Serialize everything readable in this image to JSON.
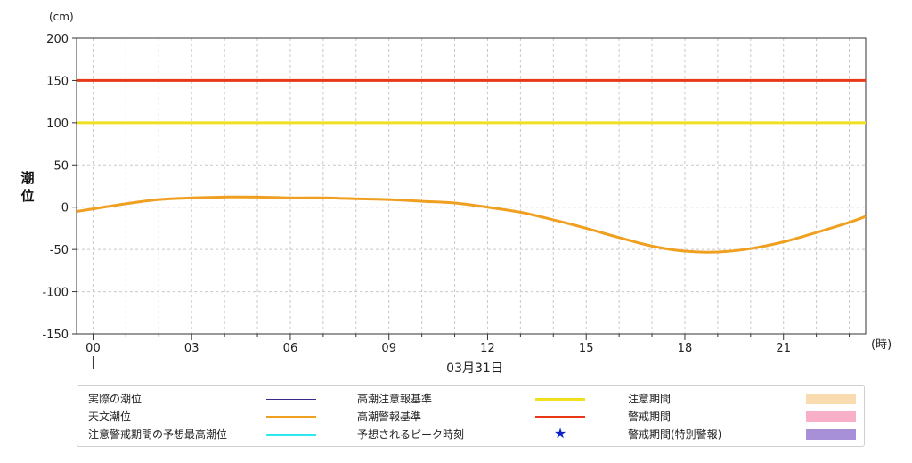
{
  "chart_data": {
    "type": "line",
    "ylabel": "潮位",
    "yunit": "(cm)",
    "xunit": "(時)",
    "date_label": "03月31日",
    "ylim": [
      -150,
      200
    ],
    "yticks": [
      200,
      150,
      100,
      50,
      0,
      -50,
      -100,
      -150
    ],
    "xlim": [
      -0.5,
      23.5
    ],
    "xticks": [
      0,
      3,
      6,
      9,
      12,
      15,
      18,
      21
    ],
    "xtick_labels": [
      "00",
      "03",
      "06",
      "09",
      "12",
      "15",
      "18",
      "21"
    ],
    "grid": true,
    "legend_position": "bottom",
    "series": [
      {
        "name": "天文潮位",
        "color": "#f0a020",
        "x": [
          -0.5,
          0,
          1,
          2,
          3,
          4,
          5,
          6,
          7,
          8,
          9,
          10,
          11,
          12,
          13,
          14,
          15,
          16,
          17,
          18,
          19,
          20,
          21,
          22,
          23,
          23.5
        ],
        "y": [
          -5,
          -2,
          4,
          9,
          11,
          12,
          12,
          11,
          11,
          10,
          9,
          7,
          5,
          0,
          -6,
          -15,
          -25,
          -36,
          -46,
          -52,
          -53,
          -49,
          -41,
          -30,
          -18,
          -11
        ]
      }
    ],
    "reference_lines": [
      {
        "name": "高潮注意報基準",
        "value": 100,
        "color": "#f0e020"
      },
      {
        "name": "高潮警報基準",
        "value": 150,
        "color": "#e83818"
      }
    ]
  },
  "legend": {
    "items": [
      {
        "label": "実際の潮位",
        "kind": "line",
        "color": "#3a2a8a",
        "thickness": 1
      },
      {
        "label": "天文潮位",
        "kind": "line",
        "color": "#f0a020",
        "thickness": 3
      },
      {
        "label": "注意警戒期間の予想最高潮位",
        "kind": "line",
        "color": "#30e8f0",
        "thickness": 3
      },
      {
        "label": "高潮注意報基準",
        "kind": "line",
        "color": "#f0e020",
        "thickness": 3
      },
      {
        "label": "高潮警報基準",
        "kind": "line",
        "color": "#e83818",
        "thickness": 3
      },
      {
        "label": "予想されるピーク時刻",
        "kind": "star",
        "color": "#1020c8",
        "symbol": "★"
      },
      {
        "label": "注意期間",
        "kind": "rect",
        "color": "#f8dcb0"
      },
      {
        "label": "警戒期間",
        "kind": "rect",
        "color": "#f8b0c8"
      },
      {
        "label": "警戒期間(特別警報)",
        "kind": "rect",
        "color": "#a890d8"
      }
    ]
  }
}
